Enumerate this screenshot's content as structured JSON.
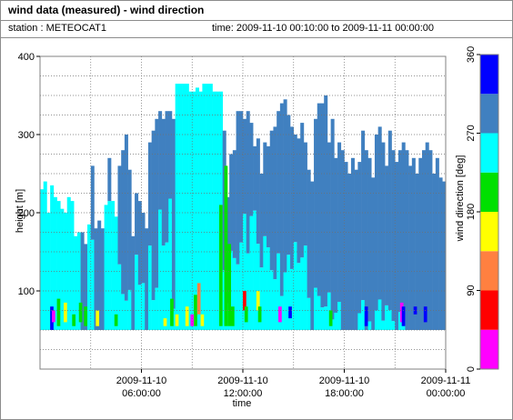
{
  "window": {
    "title": "wind data (measured) - wind direction",
    "station": "station : METEOCAT1",
    "timespan": "time: 2009-11-10 00:10:00 to 2009-11-11 00:00:00"
  },
  "chart_data": {
    "type": "heatmap",
    "title": "wind data (measured) - wind direction",
    "xlabel": "time",
    "ylabel": "height [m]",
    "colorbar_label": "wind direction [deg]",
    "x_range_hours": [
      0,
      24
    ],
    "ylim": [
      0,
      400
    ],
    "x_ticks": [
      {
        "hour": 6,
        "line1": "2009-11-10",
        "line2": "06:00:00"
      },
      {
        "hour": 12,
        "line1": "2009-11-10",
        "line2": "12:00:00"
      },
      {
        "hour": 18,
        "line1": "2009-11-10",
        "line2": "18:00:00"
      },
      {
        "hour": 24,
        "line1": "2009-11-11",
        "line2": "00:00:00"
      }
    ],
    "y_ticks": [
      100,
      200,
      300,
      400
    ],
    "colorbar_ticks": [
      0,
      90,
      180,
      270,
      360
    ],
    "color_scale": [
      {
        "from": 0,
        "to": 45,
        "color": "#ff00ff"
      },
      {
        "from": 45,
        "to": 90,
        "color": "#ff0000"
      },
      {
        "from": 90,
        "to": 135,
        "color": "#ff8040"
      },
      {
        "from": 135,
        "to": 180,
        "color": "#ffff00"
      },
      {
        "from": 180,
        "to": 225,
        "color": "#00e000"
      },
      {
        "from": 225,
        "to": 270,
        "color": "#00ffff"
      },
      {
        "from": 270,
        "to": 315,
        "color": "#4080c0"
      },
      {
        "from": 315,
        "to": 360,
        "color": "#0000ff"
      }
    ],
    "grid": true,
    "data_min_height_m": 50,
    "column_top_heights_m": [
      230,
      240,
      200,
      235,
      220,
      215,
      205,
      200,
      220,
      215,
      170,
      175,
      175,
      160,
      185,
      260,
      180,
      190,
      180,
      210,
      270,
      215,
      195,
      260,
      280,
      300,
      255,
      170,
      225,
      215,
      200,
      180,
      290,
      305,
      320,
      330,
      320,
      330,
      330,
      320,
      365,
      365,
      365,
      365,
      355,
      355,
      360,
      355,
      365,
      365,
      365,
      355,
      355,
      355,
      305,
      220,
      275,
      280,
      330,
      330,
      320,
      330,
      315,
      285,
      295,
      250,
      290,
      285,
      305,
      310,
      330,
      340,
      345,
      325,
      310,
      300,
      295,
      315,
      290,
      255,
      240,
      320,
      340,
      340,
      350,
      290,
      320,
      270,
      290,
      280,
      265,
      250,
      270,
      255,
      265,
      305,
      280,
      270,
      245,
      300,
      310,
      290,
      260,
      305,
      280,
      265,
      280,
      290,
      280,
      260,
      270,
      250,
      270,
      280,
      290,
      280,
      250,
      270,
      245,
      240
    ],
    "light_blue_ratio": [
      1.0,
      1.0,
      1.0,
      1.0,
      1.0,
      1.0,
      1.0,
      1.0,
      1.0,
      1.0,
      1.0,
      1.0,
      0.0,
      0.0,
      1.0,
      0.55,
      0.0,
      0.0,
      0.0,
      1.0,
      0.75,
      1.0,
      1.0,
      0.4,
      0.2,
      0.15,
      0.25,
      0.0,
      0.55,
      0.35,
      0.4,
      0.0,
      0.45,
      0.15,
      0.2,
      0.55,
      0.4,
      0.4,
      0.6,
      0.1,
      1.0,
      1.0,
      1.0,
      1.0,
      1.0,
      1.0,
      1.0,
      1.0,
      1.0,
      1.0,
      1.0,
      1.0,
      1.0,
      1.0,
      0.3,
      0.2,
      0.45,
      0.4,
      0.3,
      0.4,
      0.55,
      0.35,
      0.55,
      0.65,
      0.45,
      0.4,
      0.5,
      0.45,
      0.3,
      0.25,
      0.35,
      0.15,
      0.25,
      0.35,
      0.3,
      0.45,
      0.35,
      0.35,
      0.45,
      0.2,
      0.0,
      0.2,
      0.15,
      0.1,
      0.1,
      0.2,
      0.05,
      0.1,
      0.15,
      0.0,
      0.0,
      0.0,
      0.0,
      0.0,
      0.1,
      0.15,
      0.0,
      0.05,
      0.0,
      0.1,
      0.15,
      0.05,
      0.15,
      0.1,
      0.05,
      0.0,
      0.1,
      0.05,
      0.0,
      0.0,
      0.0,
      0.0,
      0.0,
      0.0,
      0.0,
      0.0,
      0.0,
      0.0,
      0.0,
      0.0
    ],
    "low_level_patches": [
      {
        "hour": 0.6,
        "from_m": 50,
        "to_m": 80,
        "deg": 315
      },
      {
        "hour": 0.7,
        "from_m": 60,
        "to_m": 75,
        "deg": 20
      },
      {
        "hour": 1.0,
        "from_m": 55,
        "to_m": 90,
        "deg": 200
      },
      {
        "hour": 1.4,
        "from_m": 60,
        "to_m": 85,
        "deg": 160
      },
      {
        "hour": 1.9,
        "from_m": 55,
        "to_m": 70,
        "deg": 200
      },
      {
        "hour": 2.3,
        "from_m": 60,
        "to_m": 85,
        "deg": 200
      },
      {
        "hour": 2.6,
        "from_m": 55,
        "to_m": 80,
        "deg": 200
      },
      {
        "hour": 3.3,
        "from_m": 55,
        "to_m": 75,
        "deg": 160
      },
      {
        "hour": 4.4,
        "from_m": 55,
        "to_m": 70,
        "deg": 200
      },
      {
        "hour": 7.3,
        "from_m": 55,
        "to_m": 65,
        "deg": 160
      },
      {
        "hour": 7.7,
        "from_m": 55,
        "to_m": 90,
        "deg": 200
      },
      {
        "hour": 8.0,
        "from_m": 55,
        "to_m": 70,
        "deg": 160
      },
      {
        "hour": 8.6,
        "from_m": 55,
        "to_m": 80,
        "deg": 160
      },
      {
        "hour": 8.9,
        "from_m": 55,
        "to_m": 70,
        "deg": 20
      },
      {
        "hour": 9.1,
        "from_m": 55,
        "to_m": 95,
        "deg": 200
      },
      {
        "hour": 9.3,
        "from_m": 70,
        "to_m": 110,
        "deg": 110
      },
      {
        "hour": 9.5,
        "from_m": 55,
        "to_m": 70,
        "deg": 160
      },
      {
        "hour": 10.6,
        "from_m": 55,
        "to_m": 210,
        "deg": 200
      },
      {
        "hour": 10.9,
        "from_m": 55,
        "to_m": 260,
        "deg": 200
      },
      {
        "hour": 11.1,
        "from_m": 55,
        "to_m": 160,
        "deg": 200
      },
      {
        "hour": 11.3,
        "from_m": 55,
        "to_m": 80,
        "deg": 200
      },
      {
        "hour": 12.0,
        "from_m": 75,
        "to_m": 100,
        "deg": 60
      },
      {
        "hour": 12.1,
        "from_m": 60,
        "to_m": 80,
        "deg": 200
      },
      {
        "hour": 12.8,
        "from_m": 75,
        "to_m": 100,
        "deg": 160
      },
      {
        "hour": 12.9,
        "from_m": 60,
        "to_m": 80,
        "deg": 200
      },
      {
        "hour": 14.1,
        "from_m": 60,
        "to_m": 80,
        "deg": 10
      },
      {
        "hour": 14.7,
        "from_m": 65,
        "to_m": 80,
        "deg": 315
      },
      {
        "hour": 17.1,
        "from_m": 55,
        "to_m": 75,
        "deg": 200
      },
      {
        "hour": 19.2,
        "from_m": 55,
        "to_m": 80,
        "deg": 330
      },
      {
        "hour": 21.3,
        "from_m": 60,
        "to_m": 85,
        "deg": 20
      },
      {
        "hour": 21.4,
        "from_m": 55,
        "to_m": 80,
        "deg": 330
      },
      {
        "hour": 22.1,
        "from_m": 70,
        "to_m": 80,
        "deg": 330
      },
      {
        "hour": 22.7,
        "from_m": 60,
        "to_m": 80,
        "deg": 330
      }
    ]
  }
}
